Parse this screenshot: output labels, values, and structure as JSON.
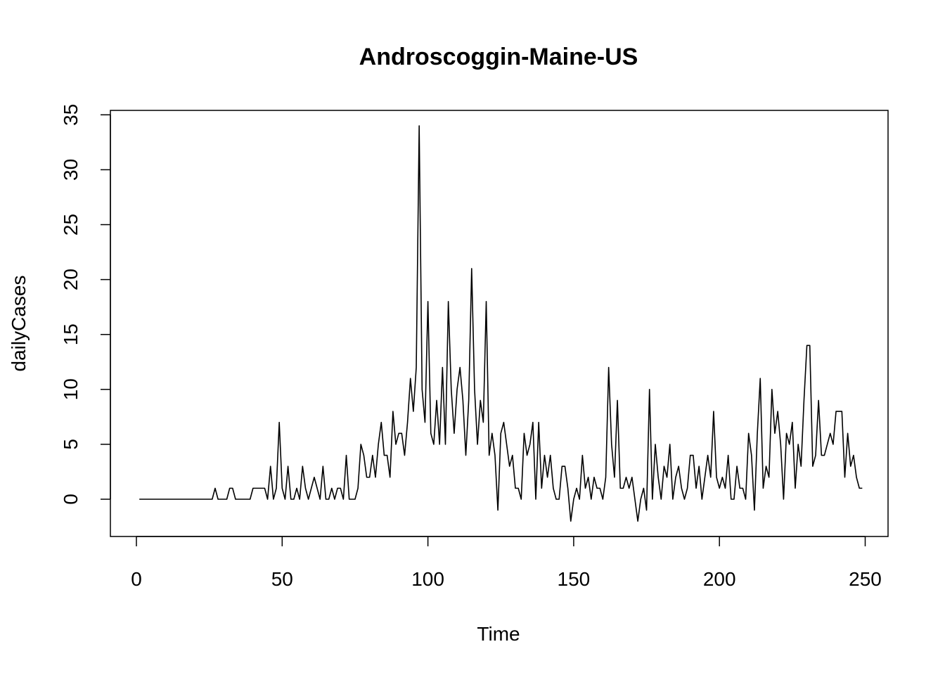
{
  "chart_data": {
    "type": "line",
    "title": "Androscoggin-Maine-US",
    "xlabel": "Time",
    "ylabel": "dailyCases",
    "xlim": [
      1,
      248
    ],
    "ylim": [
      -2,
      34
    ],
    "x_ticks": [
      0,
      50,
      100,
      150,
      200,
      250
    ],
    "y_ticks": [
      0,
      5,
      10,
      15,
      20,
      25,
      30,
      35
    ],
    "grid": false,
    "legend": "none",
    "line_color": "#000000",
    "x_start": 1,
    "series": [
      {
        "values": [
          0,
          0,
          0,
          0,
          0,
          0,
          0,
          0,
          0,
          0,
          0,
          0,
          0,
          0,
          0,
          0,
          0,
          0,
          0,
          0,
          0,
          0,
          0,
          0,
          0,
          0,
          1,
          0,
          0,
          0,
          0,
          1,
          1,
          0,
          0,
          0,
          0,
          0,
          0,
          1,
          1,
          1,
          1,
          1,
          0,
          3,
          0,
          1,
          7,
          1,
          0,
          3,
          0,
          0,
          1,
          0,
          3,
          1,
          0,
          1,
          2,
          1,
          0,
          3,
          0,
          0,
          1,
          0,
          1,
          1,
          0,
          4,
          0,
          0,
          0,
          1,
          5,
          4,
          2,
          2,
          4,
          2,
          5,
          7,
          4,
          4,
          2,
          8,
          5,
          6,
          6,
          4,
          7,
          11,
          8,
          12,
          34,
          10,
          7,
          18,
          6,
          5,
          9,
          5,
          12,
          5,
          18,
          10,
          6,
          10,
          12,
          9,
          4,
          9,
          21,
          10,
          5,
          9,
          7,
          18,
          4,
          6,
          4,
          -1,
          6,
          7,
          5,
          3,
          4,
          1,
          1,
          0,
          6,
          4,
          5,
          7,
          0,
          7,
          1,
          4,
          2,
          4,
          1,
          0,
          0,
          3,
          3,
          1,
          -2,
          0,
          1,
          0,
          4,
          1,
          2,
          0,
          2,
          1,
          1,
          0,
          2,
          12,
          5,
          2,
          9,
          1,
          1,
          2,
          1,
          2,
          0,
          -2,
          0,
          1,
          -1,
          10,
          0,
          5,
          2,
          0,
          3,
          2,
          5,
          0,
          2,
          3,
          1,
          0,
          1,
          4,
          4,
          1,
          3,
          0,
          2,
          4,
          2,
          8,
          2,
          1,
          2,
          1,
          4,
          0,
          0,
          3,
          1,
          1,
          0,
          6,
          4,
          -1,
          6,
          11,
          1,
          3,
          2,
          10,
          6,
          8,
          5,
          0,
          6,
          5,
          7,
          1,
          5,
          3,
          9,
          14,
          14,
          3,
          4,
          9,
          4,
          4,
          5,
          6,
          5,
          8,
          8,
          8,
          2,
          6,
          3,
          4,
          2,
          1,
          1
        ]
      }
    ]
  }
}
